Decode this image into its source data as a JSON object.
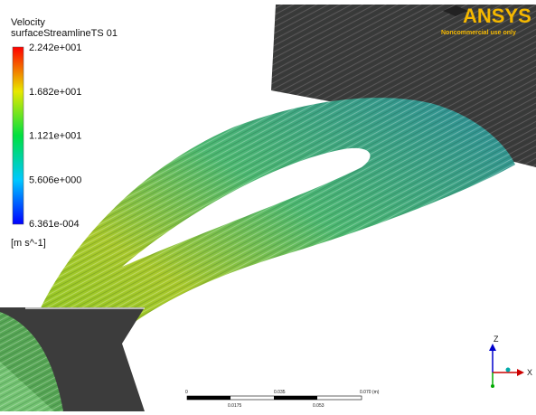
{
  "legend": {
    "title": "Velocity",
    "subtitle": "surfaceStreamlineTS 01",
    "labels": [
      "2.242e+001",
      "1.682e+001",
      "1.121e+001",
      "5.606e+000",
      "6.361e-004"
    ],
    "unit": "[m s^-1]"
  },
  "logo": {
    "name": "ANSYS",
    "note": "Noncommercial use only"
  },
  "scale_bar": {
    "top_labels": [
      "0",
      "0.035",
      "0.070 (m)"
    ],
    "bottom_labels": [
      "0.0175",
      "0.053"
    ]
  },
  "axes": {
    "labels": [
      "Z",
      "X"
    ]
  }
}
